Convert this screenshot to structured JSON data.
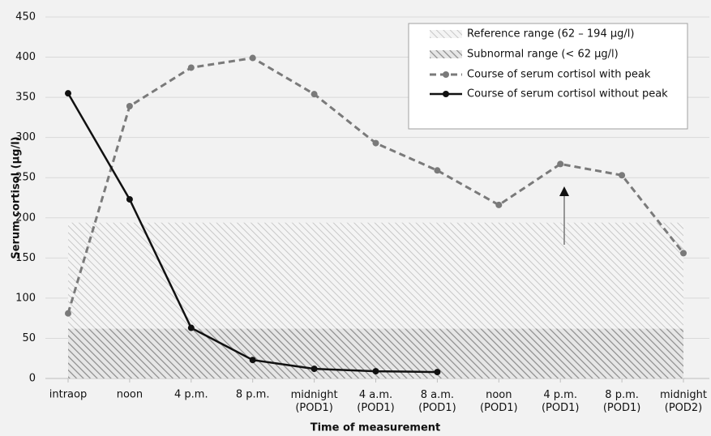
{
  "chart_data": {
    "type": "line",
    "x_label": "Time of measurement",
    "y_label": "Serum cortisol (µg/l)",
    "categories": [
      "intraop",
      "noon",
      "4 p.m.",
      "8 p.m.",
      "midnight\n(POD1)",
      "4 a.m.\n(POD1)",
      "8 a.m.\n(POD1)",
      "noon\n(POD1)",
      "4 p.m.\n(POD1)",
      "8 p.m.\n(POD1)",
      "midnight\n(POD2)"
    ],
    "bands": [
      {
        "name": "Reference range (62 – 194 µg/l)",
        "from": 62,
        "to": 194,
        "color": "#c8c8c8"
      },
      {
        "name": "Subnormal range (< 62 µg/l)",
        "from": 0,
        "to": 62,
        "color": "#8c8c8c"
      }
    ],
    "series": [
      {
        "name": "Course of serum cortisol with peak",
        "color": "#7a7a7a",
        "line_style": "dashed",
        "values": [
          81,
          339,
          387,
          399,
          354,
          293,
          259,
          216,
          267,
          253,
          156
        ]
      },
      {
        "name": "Course of serum cortisol without peak",
        "color": "#111111",
        "line_style": "solid",
        "values": [
          355,
          223,
          63,
          23,
          12,
          9,
          8,
          null,
          null,
          null,
          null
        ]
      }
    ],
    "ylim": [
      0,
      450
    ],
    "yticks": [
      0,
      50,
      100,
      150,
      200,
      250,
      300,
      350,
      400,
      450
    ],
    "grid": true,
    "legend": "top-right"
  }
}
